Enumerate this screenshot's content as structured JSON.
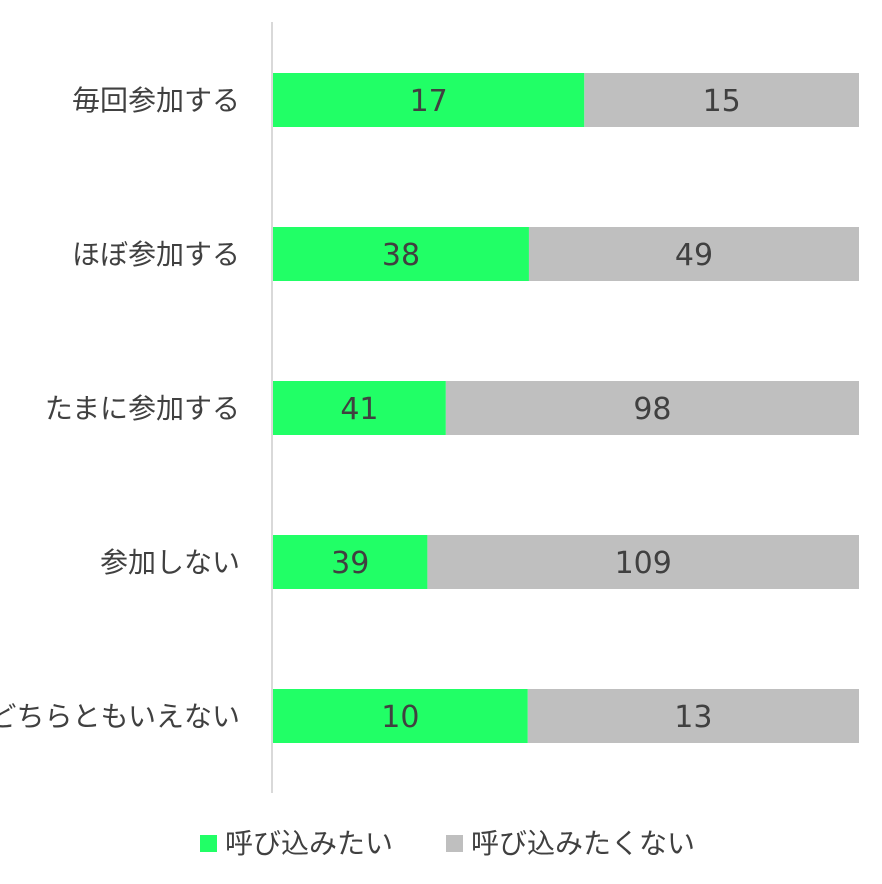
{
  "chart_data": {
    "type": "bar",
    "orientation": "horizontal",
    "stacked": true,
    "normalized": true,
    "categories": [
      "毎回参加する",
      "ほぼ参加する",
      "たまに参加する",
      "参加しない",
      "どちらともいえない"
    ],
    "series": [
      {
        "name": "呼び込みたい",
        "values": [
          17,
          38,
          41,
          39,
          10
        ],
        "color": "#21FF66"
      },
      {
        "name": "呼び込みたくない",
        "values": [
          15,
          49,
          98,
          109,
          13
        ],
        "color": "#BFBFBF"
      }
    ],
    "legend_position": "bottom",
    "grid": false,
    "axis_color": "#D9D9D9",
    "text_color": "#404040"
  }
}
